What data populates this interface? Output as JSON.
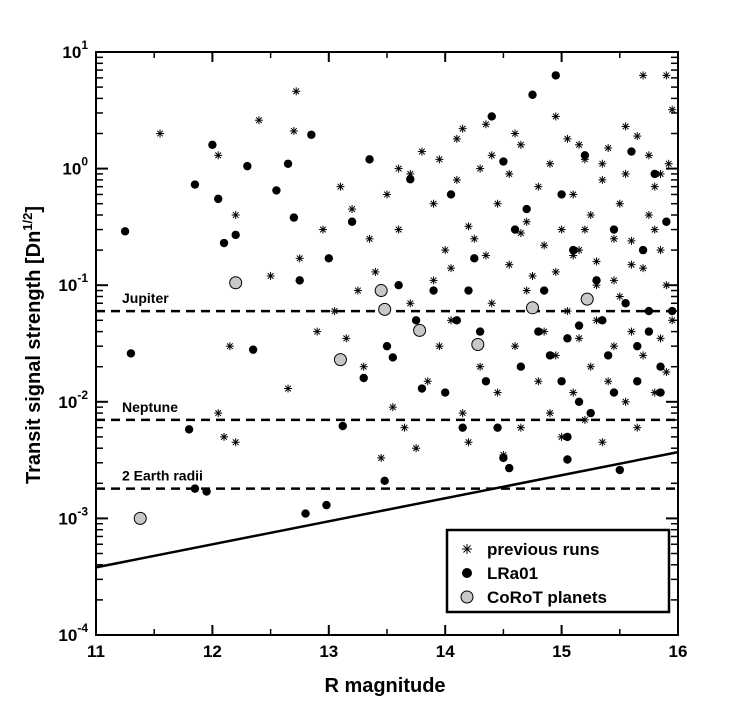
{
  "chart_data": {
    "type": "scatter",
    "title": "",
    "xlabel": "R magnitude",
    "ylabel": "Transit signal strength [Dn",
    "ylabel_sup": "1/2",
    "ylabel_close": "]",
    "xlim": [
      11,
      16
    ],
    "ylim": [
      0.0001,
      10
    ],
    "yscale": "log",
    "x_ticks": [
      "11",
      "12",
      "13",
      "14",
      "15",
      "16"
    ],
    "y_ticks": [
      {
        "base": "10",
        "exp": "-4"
      },
      {
        "base": "10",
        "exp": "-3"
      },
      {
        "base": "10",
        "exp": "-2"
      },
      {
        "base": "10",
        "exp": "-1"
      },
      {
        "base": "10",
        "exp": "0"
      },
      {
        "base": "10",
        "exp": "1"
      }
    ],
    "grid": false,
    "legend_position": "bottom-right",
    "reference_lines": [
      {
        "label": "Jupiter",
        "y": 0.06,
        "style": "dashed"
      },
      {
        "label": "Neptune",
        "y": 0.007,
        "style": "dashed"
      },
      {
        "label": "2 Earth radii",
        "y": 0.0018,
        "style": "dashed"
      }
    ],
    "detection_limit": {
      "x": [
        11,
        16
      ],
      "y": [
        0.00038,
        0.0037
      ],
      "style": "solid"
    },
    "series": [
      {
        "name": "previous runs",
        "marker": "asterisk",
        "points": [
          [
            11.55,
            2.0
          ],
          [
            12.05,
            1.3
          ],
          [
            12.2,
            0.4
          ],
          [
            12.4,
            2.6
          ],
          [
            12.7,
            2.1
          ],
          [
            12.72,
            4.6
          ],
          [
            12.95,
            0.3
          ],
          [
            12.9,
            0.04
          ],
          [
            13.1,
            0.7
          ],
          [
            13.2,
            0.45
          ],
          [
            13.4,
            0.13
          ],
          [
            13.5,
            0.6
          ],
          [
            13.6,
            0.3
          ],
          [
            13.7,
            0.9
          ],
          [
            13.8,
            1.4
          ],
          [
            13.9,
            0.5
          ],
          [
            14.0,
            0.2
          ],
          [
            14.1,
            0.8
          ],
          [
            14.15,
            2.2
          ],
          [
            14.25,
            0.25
          ],
          [
            14.3,
            1.0
          ],
          [
            14.35,
            2.4
          ],
          [
            14.45,
            0.5
          ],
          [
            14.55,
            0.9
          ],
          [
            14.6,
            2.0
          ],
          [
            14.7,
            0.35
          ],
          [
            14.75,
            0.12
          ],
          [
            14.8,
            0.7
          ],
          [
            14.9,
            1.1
          ],
          [
            15.0,
            0.3
          ],
          [
            15.05,
            1.8
          ],
          [
            15.1,
            0.6
          ],
          [
            15.15,
            0.2
          ],
          [
            15.2,
            1.2
          ],
          [
            15.25,
            0.4
          ],
          [
            15.3,
            0.1
          ],
          [
            15.35,
            0.8
          ],
          [
            15.4,
            1.5
          ],
          [
            15.45,
            0.25
          ],
          [
            15.5,
            0.5
          ],
          [
            15.55,
            0.9
          ],
          [
            15.6,
            0.15
          ],
          [
            15.65,
            1.9
          ],
          [
            15.7,
            6.3
          ],
          [
            15.75,
            0.4
          ],
          [
            15.8,
            0.7
          ],
          [
            15.85,
            0.2
          ],
          [
            15.9,
            6.3
          ],
          [
            15.92,
            1.1
          ],
          [
            15.95,
            3.2
          ],
          [
            12.15,
            0.03
          ],
          [
            12.1,
            0.005
          ],
          [
            12.2,
            0.0045
          ],
          [
            12.05,
            0.008
          ],
          [
            12.65,
            0.013
          ],
          [
            13.05,
            0.06
          ],
          [
            13.15,
            0.035
          ],
          [
            13.3,
            0.02
          ],
          [
            13.45,
            0.0033
          ],
          [
            13.55,
            0.009
          ],
          [
            13.65,
            0.006
          ],
          [
            13.75,
            0.004
          ],
          [
            13.85,
            0.015
          ],
          [
            13.95,
            0.03
          ],
          [
            14.05,
            0.05
          ],
          [
            14.15,
            0.008
          ],
          [
            14.2,
            0.0045
          ],
          [
            14.3,
            0.02
          ],
          [
            14.4,
            0.07
          ],
          [
            14.45,
            0.012
          ],
          [
            14.5,
            0.0035
          ],
          [
            14.6,
            0.03
          ],
          [
            14.65,
            0.006
          ],
          [
            14.7,
            0.09
          ],
          [
            14.8,
            0.015
          ],
          [
            14.85,
            0.04
          ],
          [
            14.9,
            0.008
          ],
          [
            14.95,
            0.025
          ],
          [
            15.0,
            0.005
          ],
          [
            15.05,
            0.06
          ],
          [
            15.1,
            0.012
          ],
          [
            15.15,
            0.035
          ],
          [
            15.2,
            0.007
          ],
          [
            15.25,
            0.02
          ],
          [
            15.3,
            0.05
          ],
          [
            15.35,
            0.0045
          ],
          [
            15.4,
            0.015
          ],
          [
            15.45,
            0.03
          ],
          [
            15.5,
            0.08
          ],
          [
            15.55,
            0.01
          ],
          [
            15.6,
            0.04
          ],
          [
            15.65,
            0.006
          ],
          [
            15.7,
            0.025
          ],
          [
            15.75,
            0.06
          ],
          [
            15.8,
            0.012
          ],
          [
            15.85,
            0.035
          ],
          [
            15.9,
            0.018
          ],
          [
            15.95,
            0.05
          ],
          [
            12.5,
            0.12
          ],
          [
            12.75,
            0.17
          ],
          [
            13.25,
            0.09
          ],
          [
            13.35,
            0.25
          ],
          [
            13.7,
            0.07
          ],
          [
            13.9,
            0.11
          ],
          [
            14.05,
            0.14
          ],
          [
            14.2,
            0.32
          ],
          [
            14.35,
            0.18
          ],
          [
            14.55,
            0.15
          ],
          [
            14.65,
            0.28
          ],
          [
            14.85,
            0.22
          ],
          [
            14.95,
            0.13
          ],
          [
            15.1,
            0.18
          ],
          [
            15.2,
            0.3
          ],
          [
            15.3,
            0.16
          ],
          [
            15.45,
            0.11
          ],
          [
            15.6,
            0.24
          ],
          [
            15.7,
            0.14
          ],
          [
            15.8,
            0.3
          ],
          [
            15.9,
            0.1
          ],
          [
            14.1,
            1.8
          ],
          [
            14.4,
            1.3
          ],
          [
            14.65,
            1.6
          ],
          [
            14.95,
            2.8
          ],
          [
            15.15,
            1.6
          ],
          [
            15.35,
            1.1
          ],
          [
            15.55,
            2.3
          ],
          [
            15.75,
            1.3
          ],
          [
            15.85,
            0.9
          ],
          [
            13.6,
            1.0
          ],
          [
            13.95,
            1.2
          ]
        ]
      },
      {
        "name": "LRa01",
        "marker": "filled-circle",
        "points": [
          [
            11.25,
            0.29
          ],
          [
            11.3,
            0.026
          ],
          [
            11.8,
            0.0058
          ],
          [
            11.85,
            0.73
          ],
          [
            11.85,
            0.0018
          ],
          [
            11.95,
            0.0017
          ],
          [
            12.0,
            1.6
          ],
          [
            12.05,
            0.55
          ],
          [
            12.1,
            0.23
          ],
          [
            12.2,
            0.27
          ],
          [
            12.3,
            1.05
          ],
          [
            12.35,
            0.028
          ],
          [
            12.55,
            0.65
          ],
          [
            12.65,
            1.1
          ],
          [
            12.7,
            0.38
          ],
          [
            12.75,
            0.11
          ],
          [
            12.8,
            0.0011
          ],
          [
            12.85,
            1.95
          ],
          [
            12.98,
            0.0013
          ],
          [
            13.0,
            0.17
          ],
          [
            13.12,
            0.0062
          ],
          [
            13.2,
            0.35
          ],
          [
            13.35,
            1.2
          ],
          [
            13.48,
            0.0021
          ],
          [
            13.55,
            0.024
          ],
          [
            13.6,
            0.1
          ],
          [
            13.7,
            0.81
          ],
          [
            13.8,
            0.013
          ],
          [
            13.9,
            0.09
          ],
          [
            14.05,
            0.6
          ],
          [
            14.15,
            0.006
          ],
          [
            14.25,
            0.17
          ],
          [
            14.3,
            0.04
          ],
          [
            14.4,
            2.8
          ],
          [
            14.5,
            1.15
          ],
          [
            14.55,
            0.0027
          ],
          [
            14.6,
            0.3
          ],
          [
            14.7,
            0.45
          ],
          [
            14.75,
            4.3
          ],
          [
            14.85,
            0.09
          ],
          [
            14.9,
            0.025
          ],
          [
            14.95,
            6.3
          ],
          [
            15.0,
            0.6
          ],
          [
            15.05,
            0.005
          ],
          [
            15.1,
            0.2
          ],
          [
            15.15,
            0.045
          ],
          [
            15.2,
            1.3
          ],
          [
            15.25,
            0.008
          ],
          [
            15.3,
            0.11
          ],
          [
            15.4,
            0.025
          ],
          [
            15.45,
            0.3
          ],
          [
            15.5,
            0.0026
          ],
          [
            15.55,
            0.07
          ],
          [
            15.6,
            1.4
          ],
          [
            15.65,
            0.015
          ],
          [
            15.7,
            0.2
          ],
          [
            15.75,
            0.04
          ],
          [
            15.8,
            0.9
          ],
          [
            15.85,
            0.012
          ],
          [
            15.9,
            0.35
          ],
          [
            15.95,
            0.06
          ],
          [
            14.0,
            0.012
          ],
          [
            14.1,
            0.05
          ],
          [
            14.2,
            0.09
          ],
          [
            14.35,
            0.015
          ],
          [
            14.45,
            0.006
          ],
          [
            14.65,
            0.02
          ],
          [
            14.8,
            0.04
          ],
          [
            15.0,
            0.015
          ],
          [
            15.05,
            0.035
          ],
          [
            15.15,
            0.01
          ],
          [
            15.35,
            0.05
          ],
          [
            15.45,
            0.012
          ],
          [
            15.65,
            0.03
          ],
          [
            15.75,
            0.06
          ],
          [
            15.85,
            0.02
          ],
          [
            13.3,
            0.016
          ],
          [
            13.5,
            0.03
          ],
          [
            13.75,
            0.05
          ],
          [
            14.5,
            0.0033
          ],
          [
            15.05,
            0.0032
          ]
        ]
      },
      {
        "name": "CoRoT planets",
        "marker": "gray-circle",
        "points": [
          [
            11.38,
            0.001
          ],
          [
            12.2,
            0.105
          ],
          [
            13.1,
            0.023
          ],
          [
            13.45,
            0.09
          ],
          [
            13.48,
            0.062
          ],
          [
            13.78,
            0.041
          ],
          [
            14.28,
            0.031
          ],
          [
            14.75,
            0.064
          ],
          [
            15.22,
            0.076
          ]
        ]
      }
    ]
  }
}
